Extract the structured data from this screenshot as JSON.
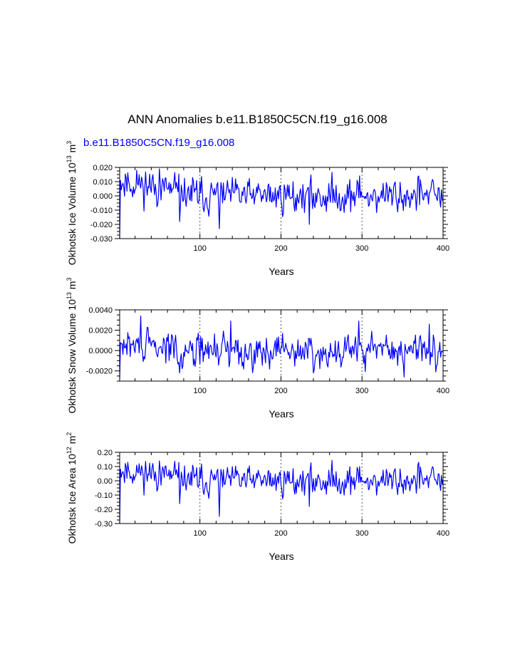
{
  "figure": {
    "title": "ANN Anomalies b.e11.B1850C5CN.f19_g16.008",
    "subtitle": "b.e11.B1850C5CN.f19_g16.008",
    "subtitle_color": "#0000ff",
    "line_color": "#0000ff"
  },
  "chart_data": [
    {
      "type": "line",
      "name": "ice-volume",
      "xlabel": "Years",
      "ylabel": {
        "base": "Okhotsk Ice Volume 10",
        "exp": "13",
        "unit": " m",
        "unit_exp": "3"
      },
      "xlim": [
        1,
        400
      ],
      "ylim": [
        -0.03,
        0.02
      ],
      "xticks": [
        100,
        200,
        300,
        400
      ],
      "xtick_labels": [
        "100",
        "200",
        "300",
        "400"
      ],
      "yticks": [
        -0.03,
        -0.02,
        -0.01,
        0.0,
        0.01,
        0.02
      ],
      "ytick_labels": [
        "-0.030",
        "-0.020",
        "-0.010",
        "0.000",
        "0.010",
        "0.020"
      ],
      "ymajor": 0.01,
      "yminor": 0.0025,
      "grid_x": [
        100,
        200,
        300
      ],
      "seed": 11,
      "amp": 0.0058,
      "early_bias": 0.008,
      "start_value": -0.03,
      "tail_value": -0.004,
      "extremes": [
        [
          50,
          0.019
        ],
        [
          22,
          0.018
        ],
        [
          75,
          -0.018
        ],
        [
          124,
          -0.023
        ],
        [
          140,
          0.013
        ],
        [
          235,
          -0.02
        ],
        [
          297,
          0.014
        ],
        [
          370,
          0.014
        ]
      ]
    },
    {
      "type": "line",
      "name": "snow-volume",
      "xlabel": "Years",
      "ylabel": {
        "base": "Okhotsk Snow Volume 10",
        "exp": "13",
        "unit": " m",
        "unit_exp": "3"
      },
      "xlim": [
        1,
        400
      ],
      "ylim": [
        -0.003,
        0.004
      ],
      "xticks": [
        100,
        200,
        300,
        400
      ],
      "xtick_labels": [
        "100",
        "200",
        "300",
        "400"
      ],
      "yticks": [
        -0.002,
        0.0,
        0.002,
        0.004
      ],
      "ytick_labels": [
        "-0.0020",
        "0.0000",
        "0.0020",
        "0.0040"
      ],
      "ymajor": 0.002,
      "yminor": 0.0005,
      "grid_x": [
        100,
        200,
        300
      ],
      "seed": 29,
      "amp": 0.00078,
      "early_bias": 0.0004,
      "start_value": -0.0028,
      "tail_value": -0.0002,
      "extremes": [
        [
          27,
          0.0034
        ],
        [
          138,
          0.0029
        ],
        [
          296,
          0.0029
        ],
        [
          240,
          -0.0022
        ],
        [
          352,
          -0.0026
        ],
        [
          75,
          -0.0022
        ],
        [
          383,
          0.0026
        ]
      ]
    },
    {
      "type": "line",
      "name": "ice-area",
      "xlabel": "Years",
      "ylabel": {
        "base": "Okhotsk Ice Area 10",
        "exp": "12",
        "unit": " m",
        "unit_exp": "2"
      },
      "xlim": [
        1,
        400
      ],
      "ylim": [
        -0.3,
        0.2
      ],
      "xticks": [
        100,
        200,
        300,
        400
      ],
      "xtick_labels": [
        "100",
        "200",
        "300",
        "400"
      ],
      "yticks": [
        -0.3,
        -0.2,
        -0.1,
        0.0,
        0.1,
        0.2
      ],
      "ytick_labels": [
        "-0.30",
        "-0.20",
        "-0.10",
        "0.00",
        "0.10",
        "0.20"
      ],
      "ymajor": 0.1,
      "yminor": 0.025,
      "grid_x": [
        100,
        200,
        300
      ],
      "seed": 11,
      "amp": 0.05,
      "early_bias": 0.06,
      "start_value": -0.3,
      "tail_value": 0.01,
      "extremes": [
        [
          50,
          0.14
        ],
        [
          22,
          0.11
        ],
        [
          75,
          -0.16
        ],
        [
          124,
          -0.25
        ],
        [
          140,
          0.1
        ],
        [
          235,
          -0.18
        ],
        [
          297,
          0.1
        ],
        [
          370,
          0.13
        ]
      ]
    }
  ]
}
